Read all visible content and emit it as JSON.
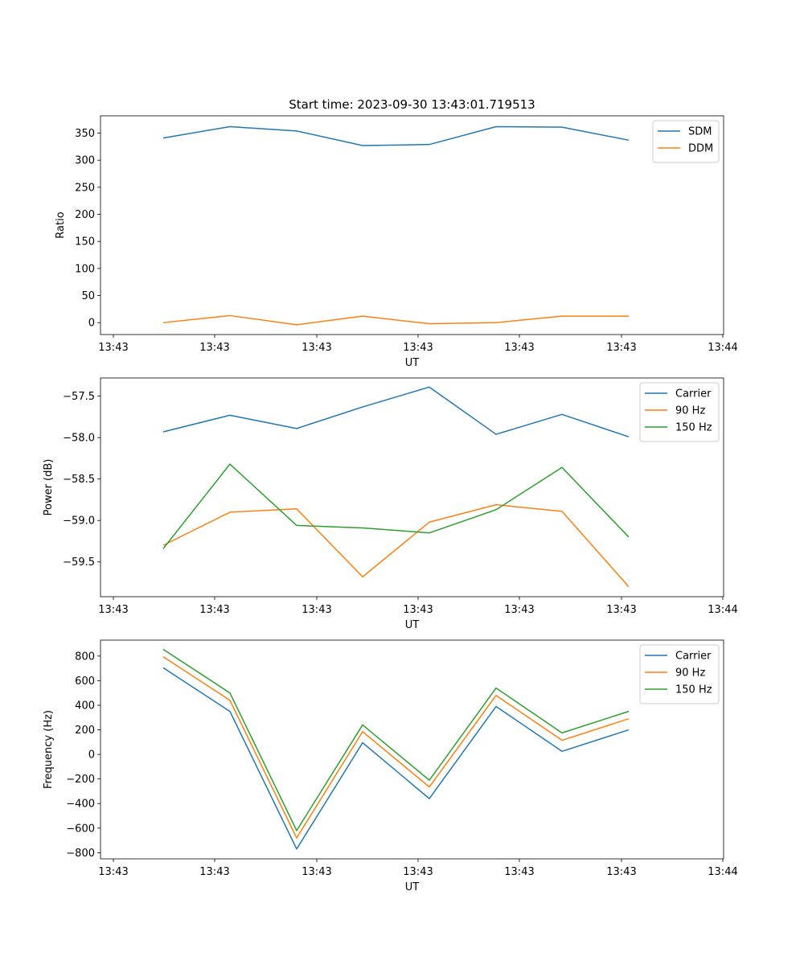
{
  "figure_title": "Start time: 2023-09-30 13:43:01.719513",
  "colors": {
    "blue": "#1f77b4",
    "orange": "#ff7f0e",
    "green": "#2ca02c"
  },
  "chart_data": [
    {
      "type": "line",
      "title": "Start time: 2023-09-30 13:43:01.719513",
      "xlabel": "UT",
      "ylabel": "Ratio",
      "x_tick_labels": [
        "13:43",
        "13:43",
        "13:43",
        "13:43",
        "13:43",
        "13:43",
        "13:44"
      ],
      "y_ticks": [
        0,
        50,
        100,
        150,
        200,
        250,
        300,
        350
      ],
      "y_tick_labels": [
        "0",
        "50",
        "100",
        "150",
        "200",
        "250",
        "300",
        "350"
      ],
      "ylim": [
        -22,
        382
      ],
      "legend": "top-right",
      "series": [
        {
          "name": "SDM",
          "color": "#1f77b4",
          "values": [
            341,
            362,
            354,
            327,
            329,
            362,
            361,
            337
          ]
        },
        {
          "name": "DDM",
          "color": "#ff7f0e",
          "values": [
            0,
            13,
            -4,
            12,
            -2,
            0,
            12,
            12
          ]
        }
      ]
    },
    {
      "type": "line",
      "title": "",
      "xlabel": "UT",
      "ylabel": "Power (dB)",
      "x_tick_labels": [
        "13:43",
        "13:43",
        "13:43",
        "13:43",
        "13:43",
        "13:43",
        "13:44"
      ],
      "y_ticks": [
        -59.5,
        -59.0,
        -58.5,
        -58.0,
        -57.5
      ],
      "y_tick_labels": [
        "−59.5",
        "−59.0",
        "−58.5",
        "−58.0",
        "−57.5"
      ],
      "ylim": [
        -59.92,
        -57.28
      ],
      "legend": "top-right",
      "series": [
        {
          "name": "Carrier",
          "color": "#1f77b4",
          "values": [
            -57.93,
            -57.73,
            -57.89,
            -57.63,
            -57.39,
            -57.96,
            -57.72,
            -57.99
          ]
        },
        {
          "name": "90 Hz",
          "color": "#ff7f0e",
          "values": [
            -59.3,
            -58.9,
            -58.86,
            -59.68,
            -59.02,
            -58.81,
            -58.89,
            -59.8
          ]
        },
        {
          "name": "150 Hz",
          "color": "#2ca02c",
          "values": [
            -59.34,
            -58.32,
            -59.06,
            -59.09,
            -59.15,
            -58.87,
            -58.36,
            -59.2
          ]
        }
      ]
    },
    {
      "type": "line",
      "title": "",
      "xlabel": "UT",
      "ylabel": "Frequency (Hz)",
      "x_tick_labels": [
        "13:43",
        "13:43",
        "13:43",
        "13:43",
        "13:43",
        "13:43",
        "13:44"
      ],
      "y_ticks": [
        -800,
        -600,
        -400,
        -200,
        0,
        200,
        400,
        600,
        800
      ],
      "y_tick_labels": [
        "−800",
        "−600",
        "−400",
        "−200",
        "0",
        "200",
        "400",
        "600",
        "800"
      ],
      "ylim": [
        -850,
        930
      ],
      "legend": "top-right",
      "series": [
        {
          "name": "Carrier",
          "color": "#1f77b4",
          "values": [
            705,
            350,
            -770,
            95,
            -360,
            390,
            25,
            200
          ]
        },
        {
          "name": "90 Hz",
          "color": "#ff7f0e",
          "values": [
            795,
            440,
            -680,
            185,
            -265,
            480,
            115,
            290
          ]
        },
        {
          "name": "150 Hz",
          "color": "#2ca02c",
          "values": [
            855,
            500,
            -620,
            240,
            -210,
            540,
            175,
            350
          ]
        }
      ]
    }
  ]
}
